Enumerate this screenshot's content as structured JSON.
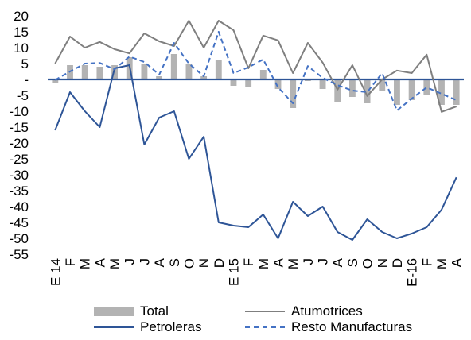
{
  "chart_data": {
    "type": "bar",
    "title": "",
    "xlabel": "",
    "ylabel": "",
    "ylim": [
      -55,
      20
    ],
    "yticks": [
      20,
      15,
      10,
      5,
      "-",
      -5,
      -10,
      -15,
      -20,
      -25,
      -30,
      -35,
      -40,
      -45,
      -50,
      -55
    ],
    "grid": false,
    "legend_position": "bottom",
    "categories": [
      "E 14",
      "F",
      "M",
      "A",
      "M",
      "J",
      "J",
      "A",
      "S",
      "O",
      "N",
      "D",
      "E 15",
      "F",
      "M",
      "A",
      "M",
      "J",
      "J",
      "A",
      "S",
      "O",
      "N",
      "D",
      "E-16",
      "F",
      "M",
      "A"
    ],
    "series": [
      {
        "name": "Total",
        "type": "bar",
        "color": "#b3b3b3",
        "values": [
          -1,
          4.5,
          4.5,
          4,
          4.5,
          7,
          5,
          1,
          8,
          5,
          1,
          6,
          -2,
          -2.5,
          3,
          -3,
          -9,
          -0.5,
          -3,
          -7,
          -5.5,
          -7.5,
          -3.5,
          -8,
          -6.5,
          -5,
          -8,
          -8
        ]
      },
      {
        "name": "Atumotrices",
        "type": "line",
        "color": "#7f7f7f",
        "dash": "solid",
        "values": [
          5,
          13.5,
          10,
          11.8,
          9.5,
          8.2,
          14.5,
          12,
          10.5,
          18.5,
          10,
          18.5,
          15.5,
          3.5,
          13.8,
          12.3,
          2,
          11.5,
          5.3,
          -3.2,
          4.5,
          -5.2,
          0,
          2.8,
          2,
          7.8,
          -10.2,
          -8.5
        ]
      },
      {
        "name": "Petroleras",
        "type": "line",
        "color": "#2e5597",
        "dash": "solid",
        "values": [
          -16,
          -4,
          -10,
          -15,
          3.5,
          4.5,
          -20.5,
          -12,
          -10,
          -25,
          -18,
          -45,
          -46,
          -46.5,
          -42.5,
          -50,
          -38.5,
          -43,
          -40,
          -48,
          -50.5,
          -44,
          -48,
          -50,
          -48.5,
          -46.5,
          -41,
          -30.8
        ]
      },
      {
        "name": "Resto Manufacturas",
        "type": "line",
        "color": "#4472c4",
        "dash": "dashed",
        "values": [
          -0.2,
          2.5,
          5,
          5.2,
          3.2,
          7.2,
          5.5,
          1.5,
          11.5,
          5,
          1,
          15,
          2,
          3.8,
          6.3,
          -2.5,
          -7.5,
          4.2,
          0.5,
          -1.8,
          -3.5,
          -4,
          2,
          -9.8,
          -6,
          -2.5,
          -4.5,
          -6.5
        ]
      }
    ]
  },
  "legend": {
    "total": "Total",
    "atumotrices": "Atumotrices",
    "petroleras": "Petroleras",
    "resto": "Resto Manufacturas"
  }
}
